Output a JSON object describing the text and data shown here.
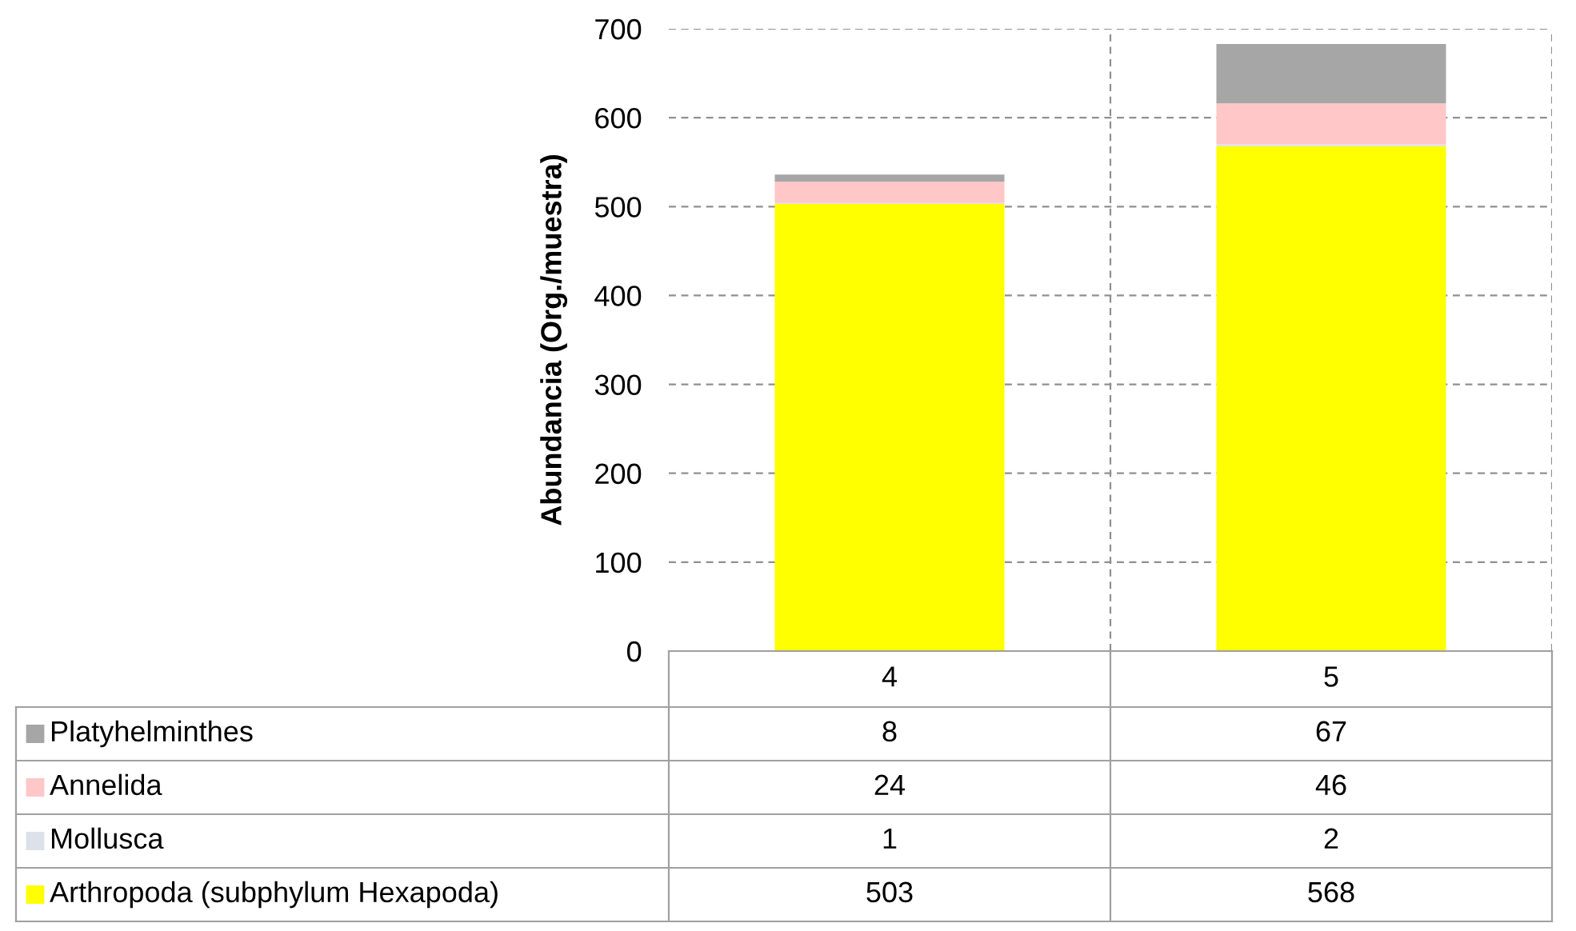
{
  "chart_data": {
    "type": "bar",
    "stacked": true,
    "ylabel": "Abundancia (Org./muestra)",
    "categories": [
      "4",
      "5"
    ],
    "series": [
      {
        "name": "Arthropoda (subphylum Hexapoda)",
        "color": "#ffff00",
        "values": [
          503,
          568
        ]
      },
      {
        "name": "Mollusca",
        "color": "#dde1ea",
        "values": [
          1,
          2
        ]
      },
      {
        "name": "Annelida",
        "color": "#ffc7c7",
        "values": [
          24,
          46
        ]
      },
      {
        "name": "Platyhelminthes",
        "color": "#a6a6a6",
        "values": [
          8,
          67
        ]
      }
    ],
    "ylim": [
      0,
      700
    ],
    "yticks": [
      0,
      100,
      200,
      300,
      400,
      500,
      600,
      700
    ],
    "grid": true,
    "data_labels": true,
    "legend": "bottom"
  }
}
